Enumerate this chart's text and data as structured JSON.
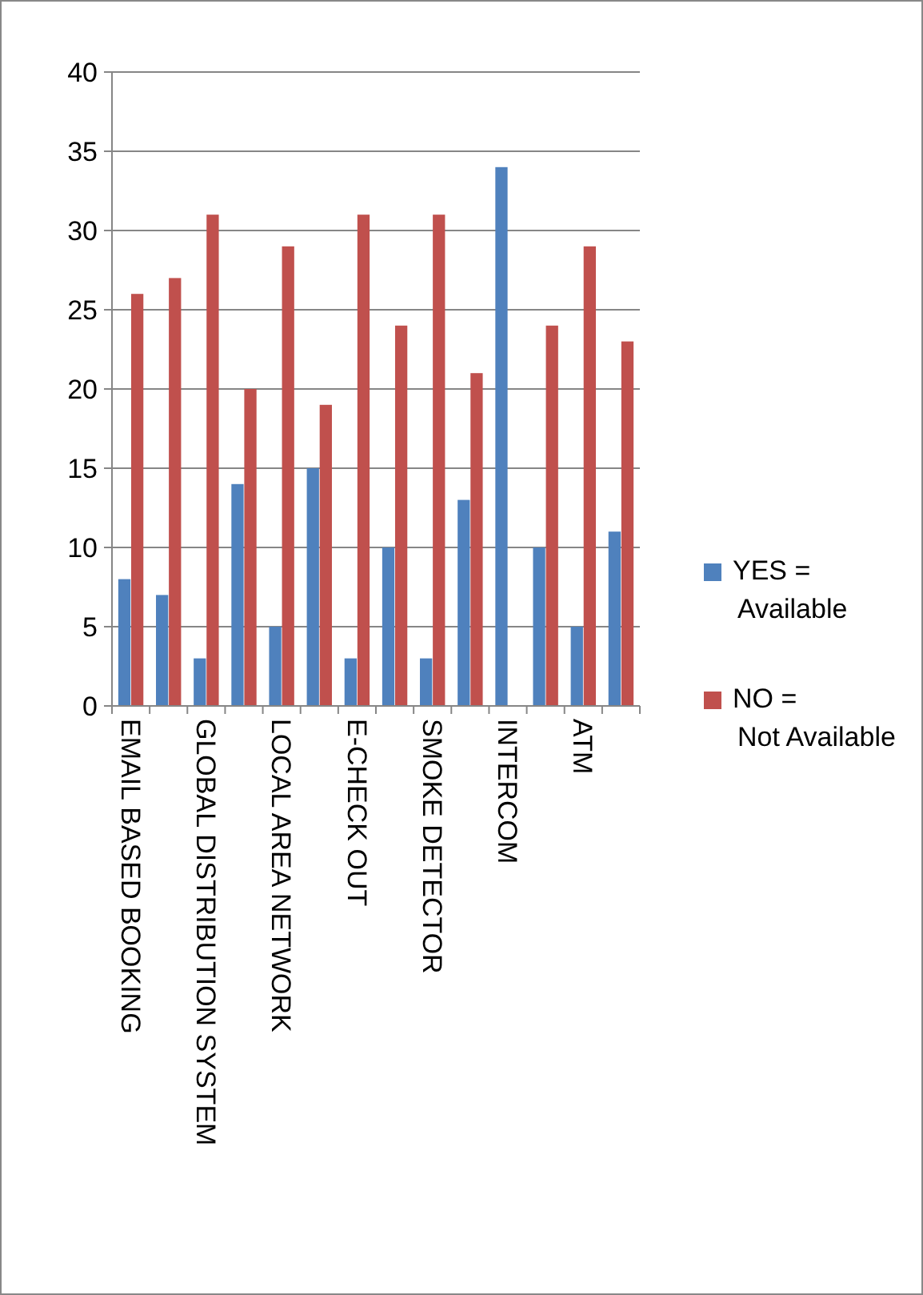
{
  "chart_data": {
    "type": "bar",
    "categories": [
      "EMAIL BASED BOOKING",
      null,
      "GLOBAL DISTRIBUTION SYSTEM",
      null,
      "LOCAL AREA NETWORK",
      null,
      "E-CHECK OUT",
      null,
      "SMOKE DETECTOR",
      null,
      "INTERCOM",
      null,
      "ATM",
      null
    ],
    "series": [
      {
        "name": "YES = Available",
        "color": "#4f81bd",
        "values": [
          8,
          7,
          3,
          14,
          5,
          15,
          3,
          10,
          3,
          13,
          34,
          10,
          5,
          11
        ]
      },
      {
        "name": "NO = Not Available",
        "color": "#c0504d",
        "values": [
          26,
          27,
          31,
          20,
          29,
          19,
          31,
          24,
          31,
          21,
          0,
          24,
          29,
          23
        ]
      }
    ],
    "ylim": [
      0,
      40
    ],
    "yticks": [
      0,
      5,
      10,
      15,
      20,
      25,
      30,
      35,
      40
    ],
    "grid": "y",
    "legend": "right"
  }
}
